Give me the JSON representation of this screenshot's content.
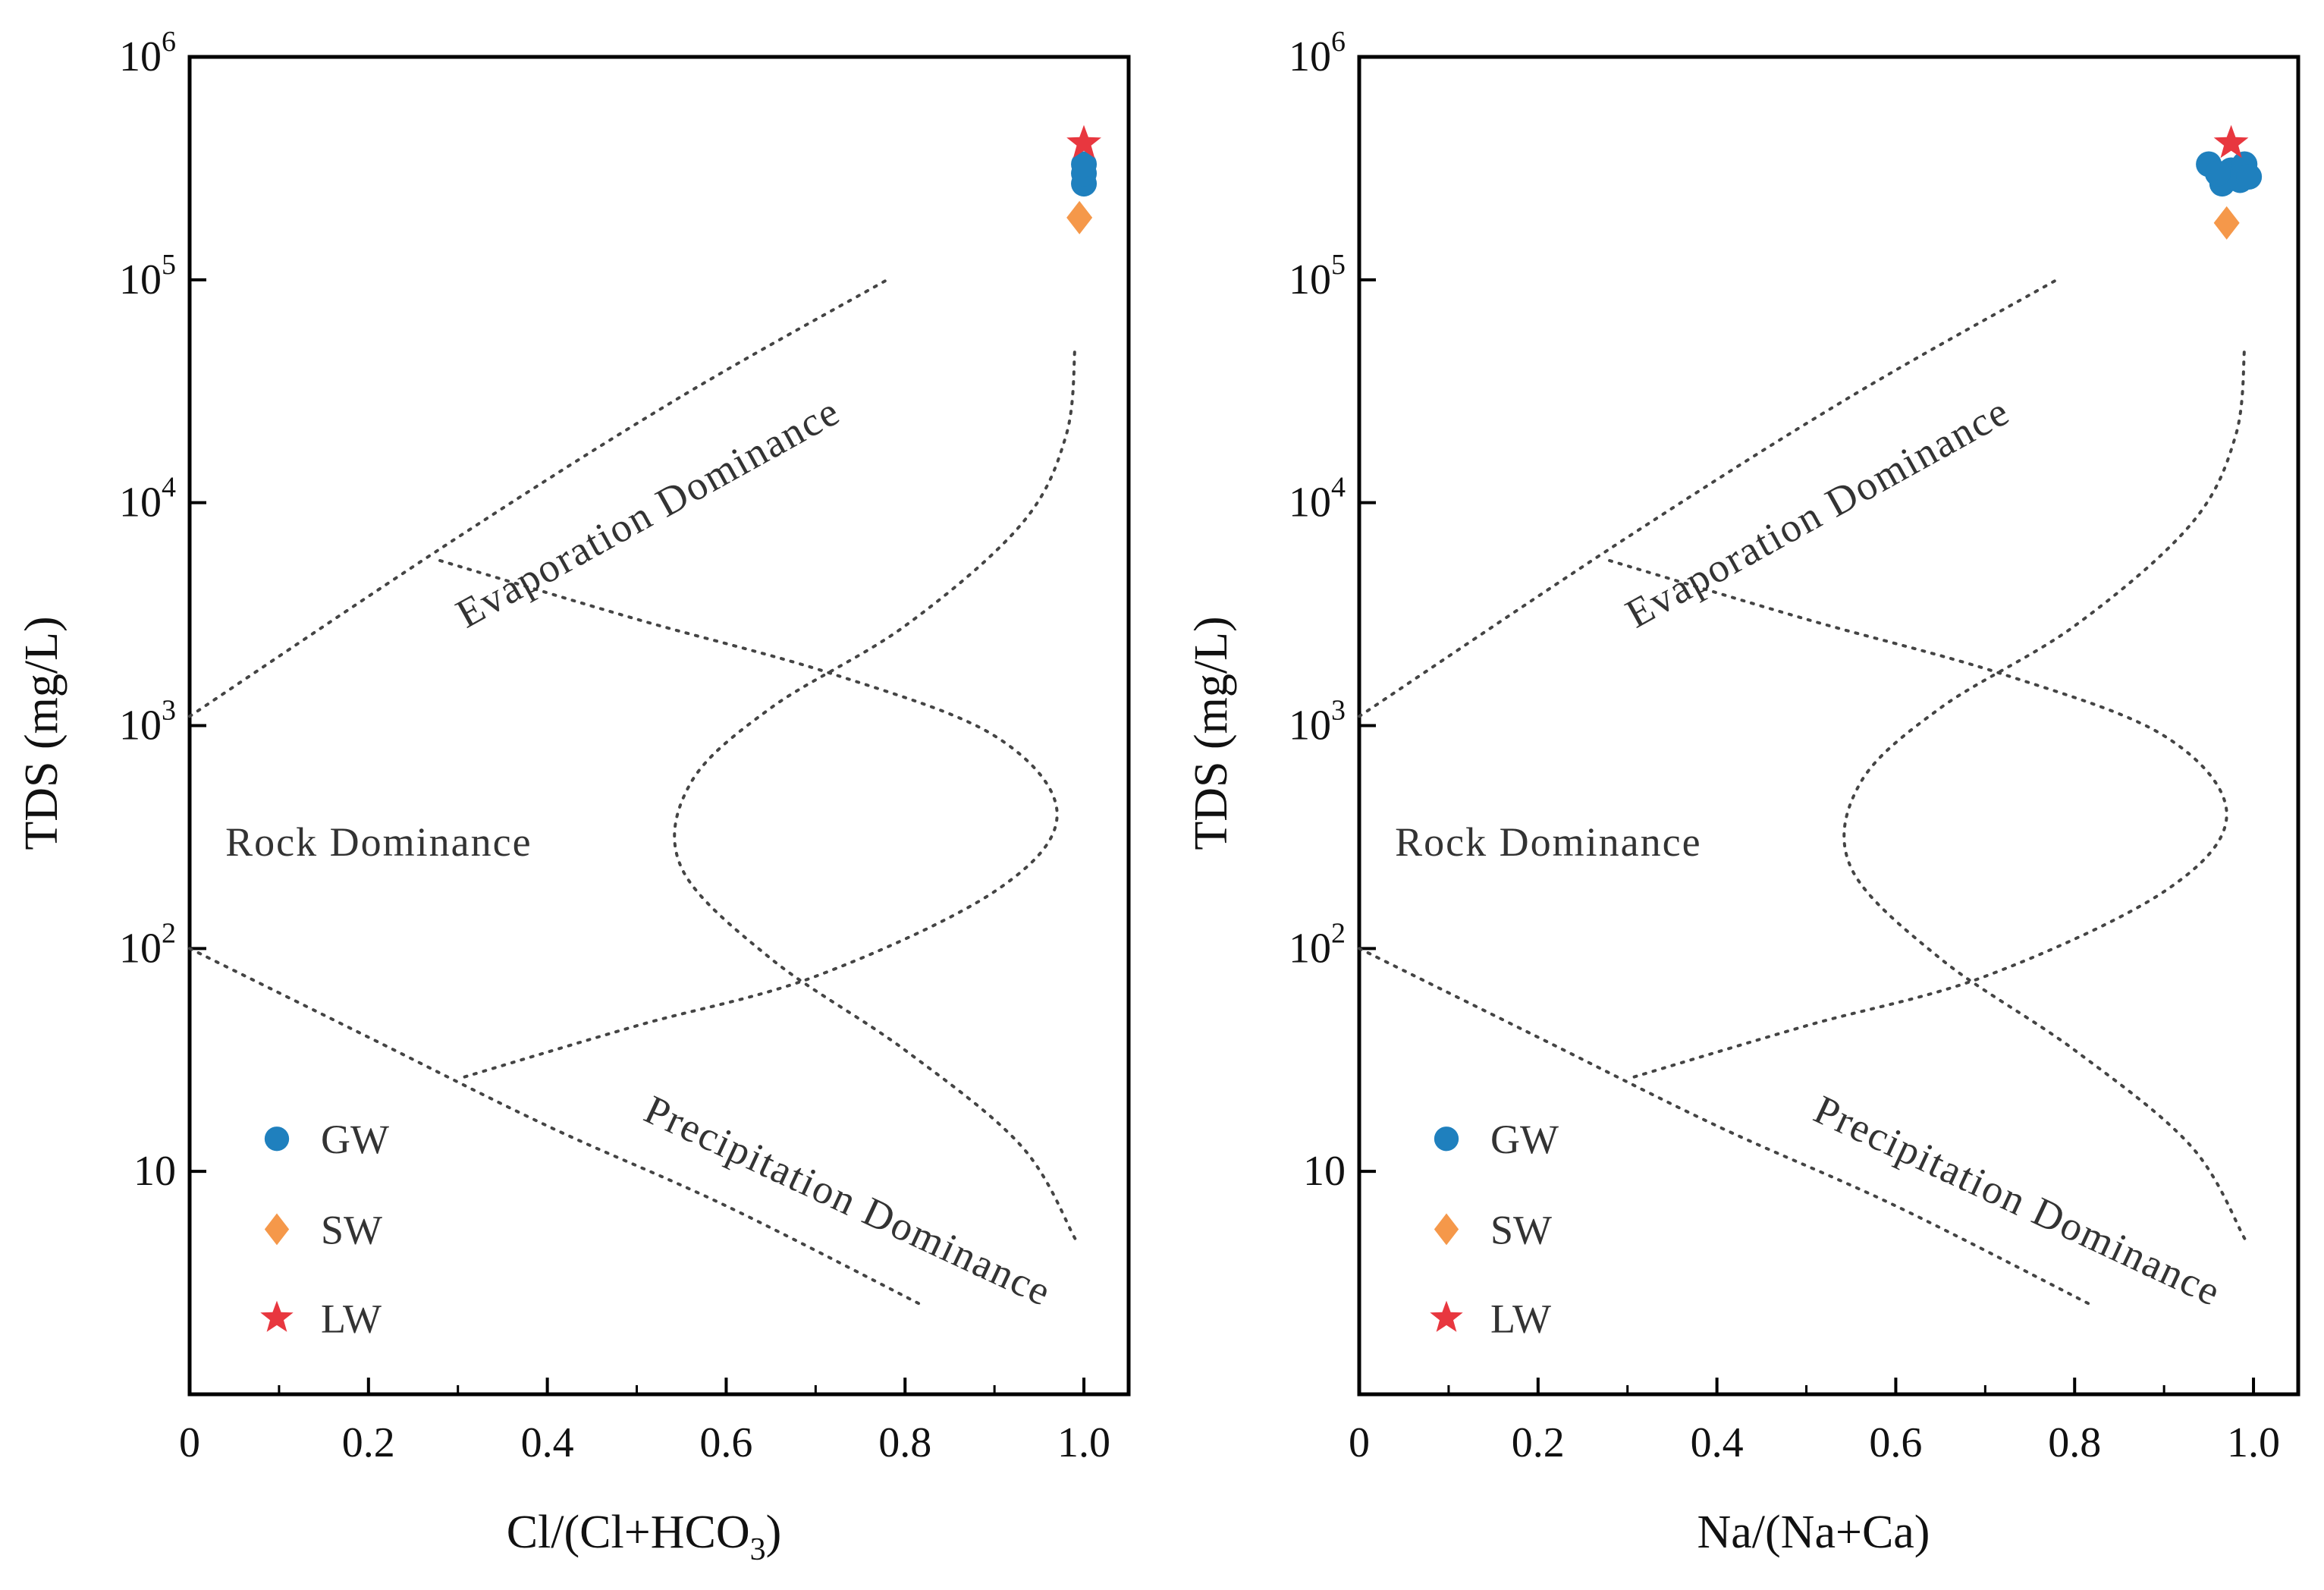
{
  "chart_data": [
    {
      "type": "scatter",
      "panel": "left",
      "title": "",
      "xlabel": "Cl/(Cl+HCO3)",
      "xlabel_main": "Cl/(Cl+HCO",
      "xlabel_sub": "3",
      "xlabel_tail": ")",
      "ylabel": "TDS (mg/L)",
      "xlim": [
        0,
        1.05
      ],
      "ylim": [
        1,
        1000000
      ],
      "yscale": "log",
      "x_ticks": [
        {
          "value": 0,
          "label": "0"
        },
        {
          "value": 0.2,
          "label": "0.2"
        },
        {
          "value": 0.4,
          "label": "0.4"
        },
        {
          "value": 0.6,
          "label": "0.6"
        },
        {
          "value": 0.8,
          "label": "0.8"
        },
        {
          "value": 1.0,
          "label": "1.0"
        }
      ],
      "y_ticks": [
        {
          "value": 10,
          "base": "10",
          "exp": ""
        },
        {
          "value": 100,
          "base": "10",
          "exp": "2"
        },
        {
          "value": 1000,
          "base": "10",
          "exp": "3"
        },
        {
          "value": 10000,
          "base": "10",
          "exp": "4"
        },
        {
          "value": 100000,
          "base": "10",
          "exp": "5"
        },
        {
          "value": 1000000,
          "base": "10",
          "exp": "6"
        }
      ],
      "series": [
        {
          "name": "GW",
          "marker": "circle",
          "color": "#1f80be",
          "points": [
            {
              "x": 1.0,
              "y": 270000
            },
            {
              "x": 1.0,
              "y": 300000
            },
            {
              "x": 1.0,
              "y": 330000
            }
          ]
        },
        {
          "name": "SW",
          "marker": "diamond",
          "color": "#f5984a",
          "points": [
            {
              "x": 0.995,
              "y": 190000
            }
          ]
        },
        {
          "name": "LW",
          "marker": "star",
          "color": "#e8373f",
          "points": [
            {
              "x": 1.0,
              "y": 410000
            }
          ]
        }
      ],
      "boundaries": [
        {
          "name": "evaporation-upper",
          "points": [
            [
              0.0,
              1100
            ],
            [
              0.3,
              7000
            ],
            [
              0.55,
              30000
            ],
            [
              0.78,
              100000
            ]
          ]
        },
        {
          "name": "rock-upper",
          "points": [
            [
              0.28,
              5500
            ],
            [
              0.5,
              3000
            ],
            [
              0.72,
              1700
            ],
            [
              0.9,
              900
            ],
            [
              0.97,
              400
            ],
            [
              0.9,
              180
            ],
            [
              0.7,
              75
            ],
            [
              0.5,
              45
            ],
            [
              0.3,
              26
            ]
          ]
        },
        {
          "name": "precipitation-lower",
          "points": [
            [
              0.0,
              100
            ],
            [
              0.2,
              40
            ],
            [
              0.4,
              16
            ],
            [
              0.6,
              7
            ],
            [
              0.82,
              2.5
            ]
          ]
        },
        {
          "name": "rock-lower",
          "points": [
            [
              0.99,
              5
            ],
            [
              0.93,
              13
            ],
            [
              0.8,
              35
            ],
            [
              0.65,
              90
            ],
            [
              0.55,
              230
            ],
            [
              0.56,
              550
            ],
            [
              0.65,
              1200
            ],
            [
              0.8,
              2800
            ],
            [
              0.93,
              8000
            ],
            [
              0.98,
              20000
            ],
            [
              0.99,
              50000
            ]
          ]
        }
      ],
      "regions": {
        "evaporation": "Evaporation Dominance",
        "rock": "Rock Dominance",
        "precipitation": "Precipitation Dominance"
      }
    },
    {
      "type": "scatter",
      "panel": "right",
      "title": "",
      "xlabel": "Na/(Na+Ca)",
      "xlabel_main": "Na/(Na+Ca)",
      "xlabel_sub": "",
      "xlabel_tail": "",
      "ylabel": "TDS (mg/L)",
      "xlim": [
        0,
        1.05
      ],
      "ylim": [
        1,
        1000000
      ],
      "yscale": "log",
      "x_ticks": [
        {
          "value": 0,
          "label": "0"
        },
        {
          "value": 0.2,
          "label": "0.2"
        },
        {
          "value": 0.4,
          "label": "0.4"
        },
        {
          "value": 0.6,
          "label": "0.6"
        },
        {
          "value": 0.8,
          "label": "0.8"
        },
        {
          "value": 1.0,
          "label": "1.0"
        }
      ],
      "y_ticks": [
        {
          "value": 10,
          "base": "10",
          "exp": ""
        },
        {
          "value": 100,
          "base": "10",
          "exp": "2"
        },
        {
          "value": 1000,
          "base": "10",
          "exp": "3"
        },
        {
          "value": 10000,
          "base": "10",
          "exp": "4"
        },
        {
          "value": 100000,
          "base": "10",
          "exp": "5"
        },
        {
          "value": 1000000,
          "base": "10",
          "exp": "6"
        }
      ],
      "series": [
        {
          "name": "GW",
          "marker": "circle",
          "color": "#1f80be",
          "points": [
            {
              "x": 0.95,
              "y": 330000
            },
            {
              "x": 0.965,
              "y": 270000
            },
            {
              "x": 0.975,
              "y": 310000
            },
            {
              "x": 0.985,
              "y": 280000
            },
            {
              "x": 0.99,
              "y": 330000
            },
            {
              "x": 0.96,
              "y": 300000
            },
            {
              "x": 0.995,
              "y": 290000
            }
          ]
        },
        {
          "name": "SW",
          "marker": "diamond",
          "color": "#f5984a",
          "points": [
            {
              "x": 0.97,
              "y": 180000
            }
          ]
        },
        {
          "name": "LW",
          "marker": "star",
          "color": "#e8373f",
          "points": [
            {
              "x": 0.975,
              "y": 410000
            }
          ]
        }
      ],
      "boundaries": [
        {
          "name": "evaporation-upper",
          "points": [
            [
              0.0,
              1100
            ],
            [
              0.3,
              7000
            ],
            [
              0.55,
              30000
            ],
            [
              0.78,
              100000
            ]
          ]
        },
        {
          "name": "rock-upper",
          "points": [
            [
              0.28,
              5500
            ],
            [
              0.5,
              3000
            ],
            [
              0.72,
              1700
            ],
            [
              0.9,
              900
            ],
            [
              0.97,
              400
            ],
            [
              0.9,
              180
            ],
            [
              0.7,
              75
            ],
            [
              0.5,
              45
            ],
            [
              0.3,
              26
            ]
          ]
        },
        {
          "name": "precipitation-lower",
          "points": [
            [
              0.0,
              100
            ],
            [
              0.2,
              40
            ],
            [
              0.4,
              16
            ],
            [
              0.6,
              7
            ],
            [
              0.82,
              2.5
            ]
          ]
        },
        {
          "name": "rock-lower",
          "points": [
            [
              0.99,
              5
            ],
            [
              0.93,
              13
            ],
            [
              0.8,
              35
            ],
            [
              0.65,
              90
            ],
            [
              0.55,
              230
            ],
            [
              0.56,
              550
            ],
            [
              0.65,
              1200
            ],
            [
              0.8,
              2800
            ],
            [
              0.93,
              8000
            ],
            [
              0.98,
              20000
            ],
            [
              0.99,
              50000
            ]
          ]
        }
      ],
      "regions": {
        "evaporation": "Evaporation Dominance",
        "rock": "Rock Dominance",
        "precipitation": "Precipitation Dominance"
      }
    }
  ]
}
